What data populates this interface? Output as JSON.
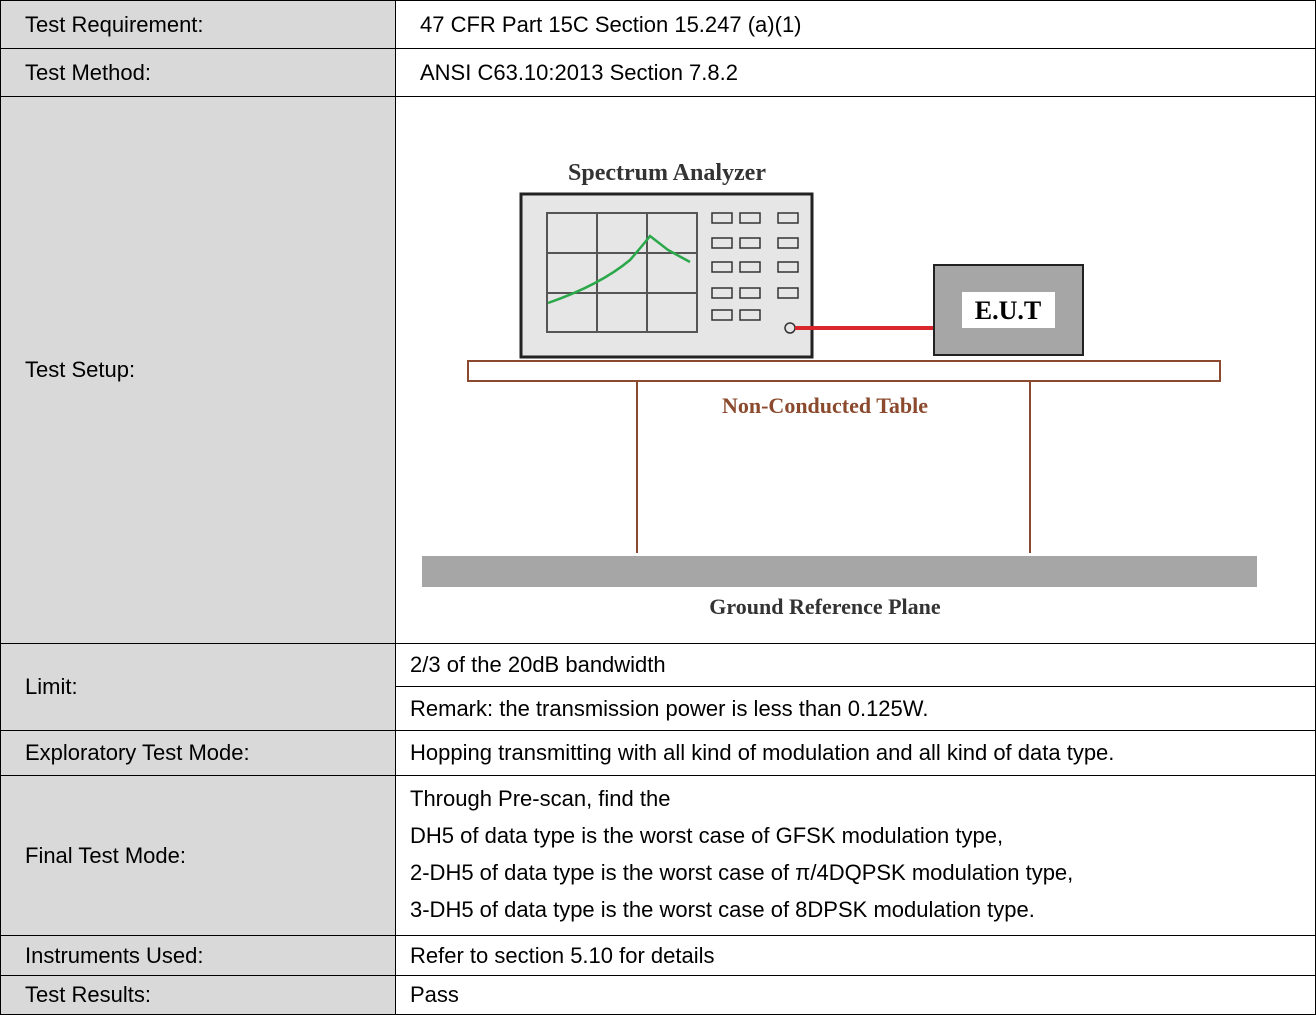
{
  "table": {
    "rows": [
      {
        "label": "Test Requirement:",
        "value": "47 CFR Part 15C Section 15.247 (a)(1)"
      },
      {
        "label": "Test Method:",
        "value": "ANSI C63.10:2013 Section 7.8.2"
      },
      {
        "label": "Test Setup:"
      },
      {
        "label": "Limit:",
        "cells": [
          "2/3 of the 20dB bandwidth",
          "Remark: the transmission power is less than 0.125W."
        ]
      },
      {
        "label": "Exploratory Test Mode:",
        "value": "Hopping transmitting with all kind of modulation and all kind of data type."
      },
      {
        "label": "Final Test Mode:",
        "lines": [
          "Through Pre-scan, find the",
          "DH5 of data type is the worst case of GFSK modulation type,",
          "2-DH5 of data type is the worst case of π/4DQPSK modulation type,",
          "3-DH5 of data type is the worst case of 8DPSK modulation type."
        ]
      },
      {
        "label": "Instruments Used:",
        "value": "Refer to section 5.10 for details"
      },
      {
        "label": "Test Results:",
        "value": "Pass"
      }
    ]
  },
  "diagram": {
    "analyzer": "Spectrum Analyzer",
    "eut": "E.U.T",
    "table": "Non-Conducted Table",
    "ground": "Ground Reference Plane"
  }
}
